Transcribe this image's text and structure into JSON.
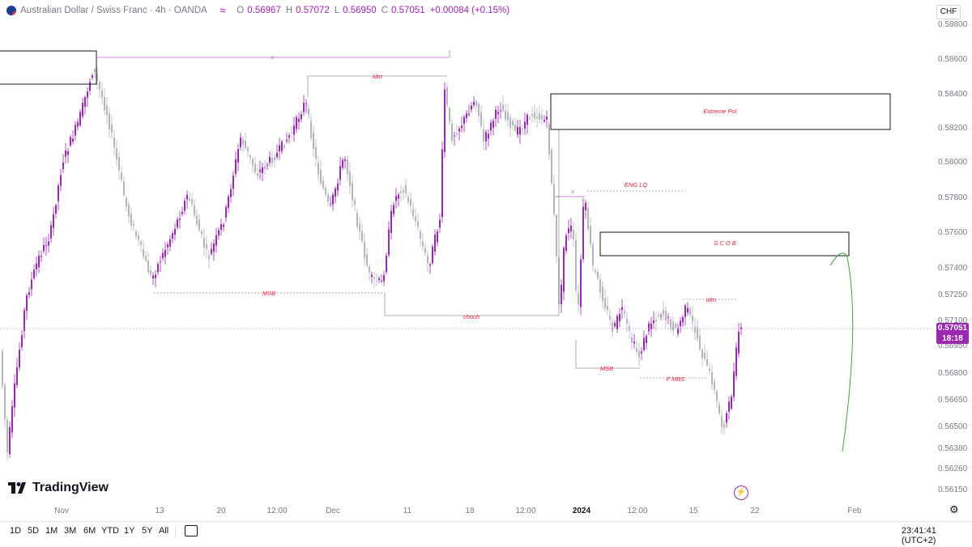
{
  "header": {
    "symbol_title": "Australian Dollar / Swiss Franc · 4h · OANDA",
    "indicator_btn": "≈",
    "ohlc": [
      {
        "k": "O",
        "v": "0.56967"
      },
      {
        "k": "H",
        "v": "0.57072"
      },
      {
        "k": "L",
        "v": "0.56950"
      },
      {
        "k": "C",
        "v": "0.57051"
      },
      {
        "k": "",
        "v": "+0.00084 (+0.15%)"
      }
    ]
  },
  "currency": "CHF",
  "price_axis": [
    "0.58800",
    "0.58600",
    "0.58400",
    "0.58200",
    "0.58000",
    "0.57800",
    "0.57600",
    "0.57400",
    "0.57250",
    "0.57100",
    "0.56950",
    "0.56800",
    "0.56650",
    "0.56500",
    "0.56380",
    "0.56260",
    "0.56150"
  ],
  "last_price": {
    "value": "0.57051",
    "countdown": "18:18"
  },
  "time_axis": [
    {
      "label": "Nov",
      "bold": false
    },
    {
      "label": "13",
      "bold": false
    },
    {
      "label": "20",
      "bold": false
    },
    {
      "label": "12:00",
      "bold": false
    },
    {
      "label": "Dec",
      "bold": false
    },
    {
      "label": "11",
      "bold": false
    },
    {
      "label": "18",
      "bold": false
    },
    {
      "label": "12:00",
      "bold": false
    },
    {
      "label": "2024",
      "bold": true
    },
    {
      "label": "12:00",
      "bold": false
    },
    {
      "label": "15",
      "bold": false
    },
    {
      "label": "22",
      "bold": false
    },
    {
      "label": "Feb",
      "bold": false
    }
  ],
  "annotations": {
    "x_top": "x",
    "idm_top": "idm",
    "extreme_poi": "Extreme PoI",
    "eng_lq": "ENG LQ",
    "x_mid": "x",
    "scob": "S C O B",
    "msb_left": "MSB",
    "choch": "choch",
    "idm_right": "idm",
    "msb_right": "MSB",
    "f_mbs": "F MBS"
  },
  "logo": "TradingView",
  "ranges": [
    "1D",
    "5D",
    "1M",
    "3M",
    "6M",
    "YTD",
    "1Y",
    "5Y",
    "All"
  ],
  "clock": "23:41:41 (UTC+2)",
  "colors": {
    "accent": "#9c27b0",
    "candle_up": "#9c27b0",
    "candle_down": "#b2b5be",
    "annotation": "#e91e3c",
    "path": "#43a047"
  },
  "icons": {
    "settings": "gear-icon",
    "alert": "lightning-icon",
    "calendar": "calendar-icon",
    "logo": "tradingview-logo"
  }
}
